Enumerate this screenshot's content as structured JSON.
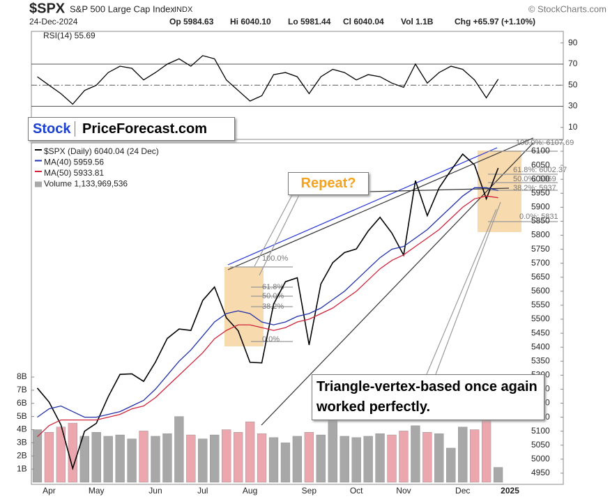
{
  "header": {
    "symbol": "$SPX",
    "name": "S&P 500 Large Cap Index",
    "exchange": "INDX",
    "source": "© StockCharts.com",
    "date": "24-Dec-2024",
    "open": "Op 5984.63",
    "high": "Hi 6040.10",
    "low": "Lo 5981.44",
    "close": "Cl 6040.04",
    "volume": "Vol 1.1B",
    "change": "Chg +65.97 (+1.10%)"
  },
  "logo": {
    "left": "Stock",
    "right": "PriceForecast.com"
  },
  "chart_data": [
    {
      "type": "line",
      "title": "RSI(14) 55.69",
      "color": "#000000",
      "values": [
        58,
        50,
        42,
        32,
        45,
        50,
        62,
        68,
        66,
        55,
        62,
        70,
        75,
        68,
        78,
        75,
        55,
        45,
        35,
        40,
        60,
        62,
        58,
        42,
        58,
        65,
        62,
        55,
        60,
        58,
        52,
        48,
        70,
        52,
        62,
        68,
        65,
        55,
        38,
        55.69,
        null
      ],
      "ylim": [
        0,
        101
      ],
      "yticks": [
        10,
        30,
        50,
        70,
        90
      ],
      "levels": [
        30,
        70
      ],
      "midline": 50
    },
    {
      "type": "line",
      "categories": [
        null,
        "Apr",
        null,
        null,
        null,
        "May",
        null,
        null,
        null,
        null,
        "Jun",
        null,
        null,
        null,
        "Jul",
        null,
        null,
        null,
        "Aug",
        null,
        null,
        null,
        null,
        "Sep",
        null,
        null,
        null,
        "Oct",
        null,
        null,
        null,
        "Nov",
        null,
        null,
        null,
        null,
        "Dec",
        null,
        null,
        null,
        "2025"
      ],
      "series": [
        {
          "name": "$SPX (Daily) 6040.04 (24 Dec)",
          "color": "#000000",
          "values": [
            5254,
            5204,
            5123,
            4967,
            5100,
            5128,
            5223,
            5303,
            5305,
            5278,
            5347,
            5431,
            5465,
            5460,
            5567,
            5615,
            5505,
            5459,
            5346,
            5344,
            5554,
            5634,
            5648,
            5408,
            5626,
            5702,
            5738,
            5751,
            5815,
            5864,
            5808,
            5729,
            5995,
            5870,
            5969,
            6032,
            6090,
            6051,
            5930,
            6040,
            null
          ]
        },
        {
          "name": "MA(40) 5959.56",
          "color": "#1f2fa8",
          "values": [
            5150,
            5180,
            5190,
            5170,
            5150,
            5150,
            5160,
            5170,
            5190,
            5210,
            5250,
            5300,
            5350,
            5390,
            5440,
            5490,
            5520,
            5530,
            5520,
            5490,
            5480,
            5490,
            5510,
            5520,
            5540,
            5570,
            5600,
            5640,
            5680,
            5720,
            5750,
            5760,
            5790,
            5820,
            5860,
            5900,
            5940,
            5970,
            5970,
            5960,
            null
          ]
        },
        {
          "name": "MA(50) 5933.81",
          "color": "#d0243b",
          "values": [
            5080,
            5120,
            5140,
            5140,
            5140,
            5140,
            5150,
            5160,
            5180,
            5190,
            5220,
            5260,
            5300,
            5340,
            5380,
            5430,
            5460,
            5480,
            5480,
            5470,
            5460,
            5470,
            5490,
            5500,
            5520,
            5540,
            5570,
            5600,
            5640,
            5680,
            5710,
            5730,
            5760,
            5790,
            5820,
            5860,
            5900,
            5930,
            5940,
            5934,
            null
          ]
        },
        {
          "name": "Volume 1,133,969,536",
          "type": "bar",
          "axis": "y2",
          "color": "#a8a8a8",
          "down_color": "#eba6ae",
          "values": [
            4000000000,
            3800000000,
            4200000000,
            4500000000,
            3500000000,
            3800000000,
            3500000000,
            3600000000,
            3300000000,
            3900000000,
            3500000000,
            3700000000,
            5000000000,
            3600000000,
            3300000000,
            3600000000,
            4000000000,
            3800000000,
            4600000000,
            3700000000,
            3400000000,
            3000000000,
            3500000000,
            3800000000,
            3600000000,
            4800000000,
            3500000000,
            3400000000,
            3500000000,
            3700000000,
            3600000000,
            3900000000,
            4300000000,
            3800000000,
            3700000000,
            2600000000,
            4200000000,
            4000000000,
            5000000000,
            1133969536,
            null
          ]
        }
      ],
      "ylim": [
        4910,
        6130
      ],
      "yticks": [
        4950,
        5000,
        5050,
        5100,
        5150,
        5200,
        5250,
        5300,
        5350,
        5400,
        5450,
        5500,
        5550,
        5600,
        5650,
        5700,
        5750,
        5800,
        5850,
        5900,
        5950,
        6000,
        6050,
        6100
      ],
      "y2lim": [
        0,
        25800000000
      ],
      "y2ticks": [
        {
          "value": 1000000000,
          "label": "1B"
        },
        {
          "value": 2000000000,
          "label": "2B"
        },
        {
          "value": 3000000000,
          "label": "3B"
        },
        {
          "value": 4000000000,
          "label": "4B"
        },
        {
          "value": 5000000000,
          "label": "5B"
        },
        {
          "value": 6000000000,
          "label": "6B"
        },
        {
          "value": 7000000000,
          "label": "7B"
        },
        {
          "value": 8000000000,
          "label": "8B"
        }
      ],
      "annotations": {
        "repeat": "Repeat?",
        "note": "Triangle-vertex-based once again worked perfectly.",
        "fib_right": [
          "100.0%: 6107.69",
          "61.8%: 6002.37",
          "50.0%: 5969",
          "38.2%: 5937",
          "0.0%: 5831"
        ],
        "fib_left": [
          "100.0%",
          "61.8%",
          "50.0%",
          "38.2%",
          "0.0%"
        ]
      }
    }
  ]
}
